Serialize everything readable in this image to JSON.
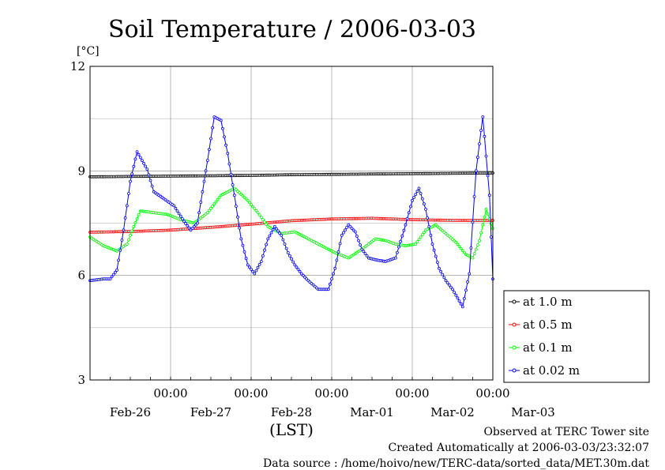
{
  "chart_data": {
    "type": "line",
    "title": "Soil Temperature / 2006-03-03",
    "ylabel": "[°C]",
    "xlabel": "(LST)",
    "ylim": [
      3,
      12
    ],
    "yticks": [
      3,
      6,
      9,
      12
    ],
    "x_range_hours": [
      -108,
      12
    ],
    "x_tick_hours": [
      -84,
      -60,
      -36,
      -12,
      12
    ],
    "x_tick_labels": [
      "00:00",
      "00:00",
      "00:00",
      "00:00",
      "00:00"
    ],
    "x_day_labels": [
      "Feb-26",
      "Feb-27",
      "Feb-28",
      "Mar-01",
      "Mar-02",
      "Mar-03"
    ],
    "x_day_label_hours": [
      -96,
      -72,
      -48,
      -24,
      0,
      24
    ],
    "grid": true,
    "legend_position": "right",
    "series": [
      {
        "name": "at 1.0 m",
        "color": "#000000",
        "x": [
          -108,
          -96,
          -84,
          -72,
          -60,
          -48,
          -36,
          -24,
          -12,
          0,
          12
        ],
        "y": [
          8.83,
          8.84,
          8.85,
          8.86,
          8.87,
          8.89,
          8.9,
          8.91,
          8.92,
          8.93,
          8.94
        ]
      },
      {
        "name": "at 0.5 m",
        "color": "#ff0000",
        "x": [
          -108,
          -96,
          -84,
          -72,
          -60,
          -48,
          -36,
          -24,
          -12,
          0,
          12
        ],
        "y": [
          7.24,
          7.26,
          7.3,
          7.38,
          7.47,
          7.57,
          7.62,
          7.64,
          7.6,
          7.58,
          7.58
        ]
      },
      {
        "name": "at 0.1 m",
        "color": "#00ff00",
        "x": [
          -108,
          -104,
          -100,
          -97,
          -95,
          -93,
          -89,
          -85,
          -81,
          -77,
          -73,
          -69,
          -65,
          -61,
          -58,
          -55,
          -51,
          -47,
          -43,
          -39,
          -35,
          -31,
          -27,
          -23,
          -20,
          -17,
          -14,
          -11,
          -8,
          -5,
          -2,
          1,
          4,
          6,
          8,
          10,
          12
        ],
        "y": [
          7.1,
          6.85,
          6.7,
          6.9,
          7.4,
          7.85,
          7.8,
          7.75,
          7.6,
          7.5,
          7.8,
          8.3,
          8.5,
          8.15,
          7.8,
          7.4,
          7.2,
          7.25,
          7.05,
          6.85,
          6.65,
          6.5,
          6.75,
          7.05,
          7.0,
          6.9,
          6.85,
          6.9,
          7.3,
          7.45,
          7.2,
          6.95,
          6.6,
          6.5,
          7.0,
          7.9,
          7.35
        ]
      },
      {
        "name": "at 0.02 m",
        "color": "#0000ff",
        "x": [
          -108,
          -104,
          -102,
          -100,
          -98,
          -96,
          -94,
          -91,
          -89,
          -86,
          -83,
          -80,
          -78,
          -76,
          -73,
          -71,
          -69,
          -67,
          -65,
          -63,
          -61,
          -59,
          -57,
          -55,
          -53,
          -51,
          -49,
          -47,
          -45,
          -43,
          -40,
          -37,
          -35,
          -33,
          -31,
          -29,
          -27,
          -25,
          -23,
          -20,
          -17,
          -14,
          -12,
          -10,
          -8,
          -6,
          -4,
          -2,
          0,
          3,
          5,
          7,
          9,
          11,
          12
        ],
        "y": [
          5.85,
          5.9,
          5.9,
          6.15,
          7.3,
          8.7,
          9.55,
          9.05,
          8.4,
          8.2,
          8.0,
          7.55,
          7.3,
          7.5,
          9.3,
          10.55,
          10.45,
          9.5,
          8.3,
          7.05,
          6.3,
          6.05,
          6.4,
          7.05,
          7.4,
          7.15,
          6.65,
          6.3,
          6.05,
          5.85,
          5.6,
          5.6,
          6.2,
          7.15,
          7.45,
          7.25,
          6.75,
          6.5,
          6.45,
          6.4,
          6.5,
          7.45,
          8.15,
          8.5,
          7.9,
          6.9,
          6.2,
          5.85,
          5.6,
          5.1,
          6.05,
          9.0,
          10.55,
          8.3,
          5.9
        ]
      }
    ]
  },
  "footer": {
    "site": "Observed at TERC Tower site",
    "created": "Created Automatically at 2006-03-03/23:32:07",
    "source": "Data source : /home/hoivo/new/TERC-data/sorted_data/MET.30m.dat"
  }
}
